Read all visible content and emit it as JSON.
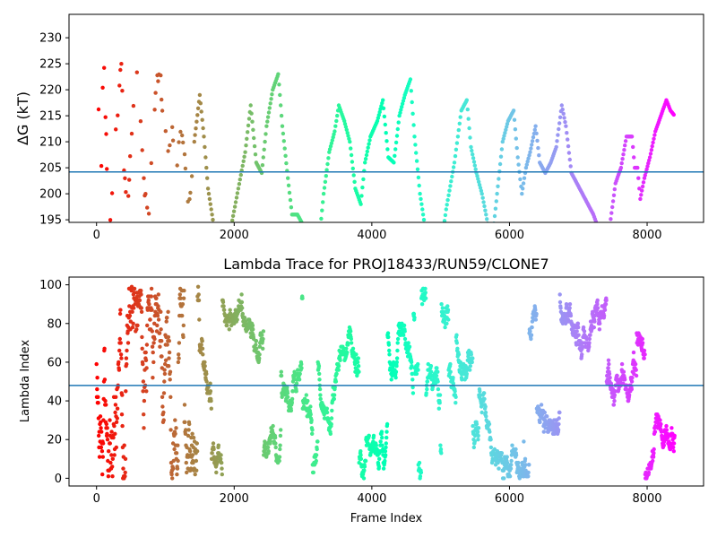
{
  "figure": {
    "background": "#ffffff"
  },
  "chart_data": [
    {
      "type": "scatter",
      "title": "",
      "xlabel": "",
      "ylabel": "ΔG (kT)",
      "xlim": [
        -400,
        8820
      ],
      "ylim": [
        194.5,
        234.5
      ],
      "xticks": [
        0,
        2000,
        4000,
        6000,
        8000
      ],
      "yticks": [
        195,
        200,
        205,
        210,
        215,
        220,
        225,
        230
      ],
      "hline": {
        "y": 204.2,
        "color": "#1f77b4"
      },
      "colormap": "rainbow (red at frame 0 → violet at end)",
      "x_max": 8400,
      "anchors": [
        [
          0,
          230
        ],
        [
          20,
          220
        ],
        [
          40,
          210
        ],
        [
          60,
          200
        ],
        [
          80,
          209
        ],
        [
          100,
          229
        ],
        [
          130,
          215
        ],
        [
          160,
          200
        ],
        [
          200,
          196
        ],
        [
          240,
          203
        ],
        [
          280,
          211
        ],
        [
          320,
          218
        ],
        [
          360,
          226
        ],
        [
          400,
          205
        ],
        [
          450,
          196
        ],
        [
          500,
          210
        ],
        [
          560,
          220
        ],
        [
          600,
          224
        ],
        [
          640,
          213
        ],
        [
          700,
          200
        ],
        [
          760,
          195
        ],
        [
          820,
          212
        ],
        [
          870,
          221
        ],
        [
          920,
          224
        ],
        [
          980,
          213
        ],
        [
          1040,
          207
        ],
        [
          1100,
          212
        ],
        [
          1160,
          204
        ],
        [
          1220,
          213
        ],
        [
          1280,
          208
        ],
        [
          1340,
          198
        ],
        [
          1420,
          210
        ],
        [
          1500,
          219
        ],
        [
          1560,
          211
        ],
        [
          1620,
          201
        ],
        [
          1690,
          195
        ],
        [
          1760,
          190
        ],
        [
          1860,
          185
        ],
        [
          1960,
          194
        ],
        [
          2060,
          201
        ],
        [
          2160,
          208
        ],
        [
          2240,
          217
        ],
        [
          2320,
          206
        ],
        [
          2400,
          204
        ],
        [
          2470,
          213
        ],
        [
          2560,
          220
        ],
        [
          2640,
          223
        ],
        [
          2700,
          213
        ],
        [
          2780,
          203
        ],
        [
          2840,
          196
        ],
        [
          2920,
          196
        ],
        [
          3000,
          194
        ],
        [
          3100,
          188
        ],
        [
          3240,
          192
        ],
        [
          3300,
          200
        ],
        [
          3380,
          208
        ],
        [
          3460,
          212
        ],
        [
          3520,
          217
        ],
        [
          3600,
          214
        ],
        [
          3680,
          210
        ],
        [
          3760,
          201
        ],
        [
          3840,
          198
        ],
        [
          3900,
          206
        ],
        [
          3980,
          211
        ],
        [
          4080,
          214
        ],
        [
          4160,
          218
        ],
        [
          4240,
          207
        ],
        [
          4320,
          206
        ],
        [
          4400,
          215
        ],
        [
          4480,
          219
        ],
        [
          4560,
          222
        ],
        [
          4620,
          211
        ],
        [
          4700,
          200
        ],
        [
          4780,
          193
        ],
        [
          4860,
          190
        ],
        [
          4960,
          186
        ],
        [
          5080,
          197
        ],
        [
          5200,
          206
        ],
        [
          5300,
          216
        ],
        [
          5380,
          218
        ],
        [
          5440,
          209
        ],
        [
          5520,
          204
        ],
        [
          5600,
          200
        ],
        [
          5660,
          196
        ],
        [
          5740,
          190
        ],
        [
          5820,
          200
        ],
        [
          5900,
          210
        ],
        [
          5980,
          214
        ],
        [
          6060,
          216
        ],
        [
          6120,
          207
        ],
        [
          6180,
          200
        ],
        [
          6240,
          205
        ],
        [
          6300,
          208
        ],
        [
          6380,
          213
        ],
        [
          6440,
          206
        ],
        [
          6520,
          204
        ],
        [
          6600,
          206
        ],
        [
          6680,
          209
        ],
        [
          6760,
          217
        ],
        [
          6820,
          213
        ],
        [
          6900,
          204
        ],
        [
          6980,
          202
        ],
        [
          7060,
          200
        ],
        [
          7140,
          198
        ],
        [
          7220,
          196
        ],
        [
          7300,
          193
        ],
        [
          7380,
          190
        ],
        [
          7460,
          194
        ],
        [
          7540,
          202
        ],
        [
          7620,
          205
        ],
        [
          7700,
          211
        ],
        [
          7780,
          211
        ],
        [
          7820,
          205
        ],
        [
          7860,
          205
        ],
        [
          7900,
          199
        ],
        [
          7960,
          203
        ],
        [
          8040,
          207
        ],
        [
          8120,
          212
        ],
        [
          8200,
          215
        ],
        [
          8280,
          218
        ],
        [
          8340,
          216
        ],
        [
          8400,
          215
        ]
      ]
    },
    {
      "type": "scatter",
      "title": "Lambda Trace for PROJ18433/RUN59/CLONE7",
      "xlabel": "Frame Index",
      "ylabel": "Lambda Index",
      "xlim": [
        -400,
        8820
      ],
      "ylim": [
        -4,
        104
      ],
      "xticks": [
        0,
        2000,
        4000,
        6000,
        8000
      ],
      "yticks": [
        0,
        20,
        40,
        60,
        80,
        100
      ],
      "hline": {
        "y": 48,
        "color": "#1f77b4"
      },
      "colormap": "rainbow (red at frame 0 → violet at end)",
      "value_range": [
        0,
        99
      ],
      "x_max": 8400
    }
  ]
}
